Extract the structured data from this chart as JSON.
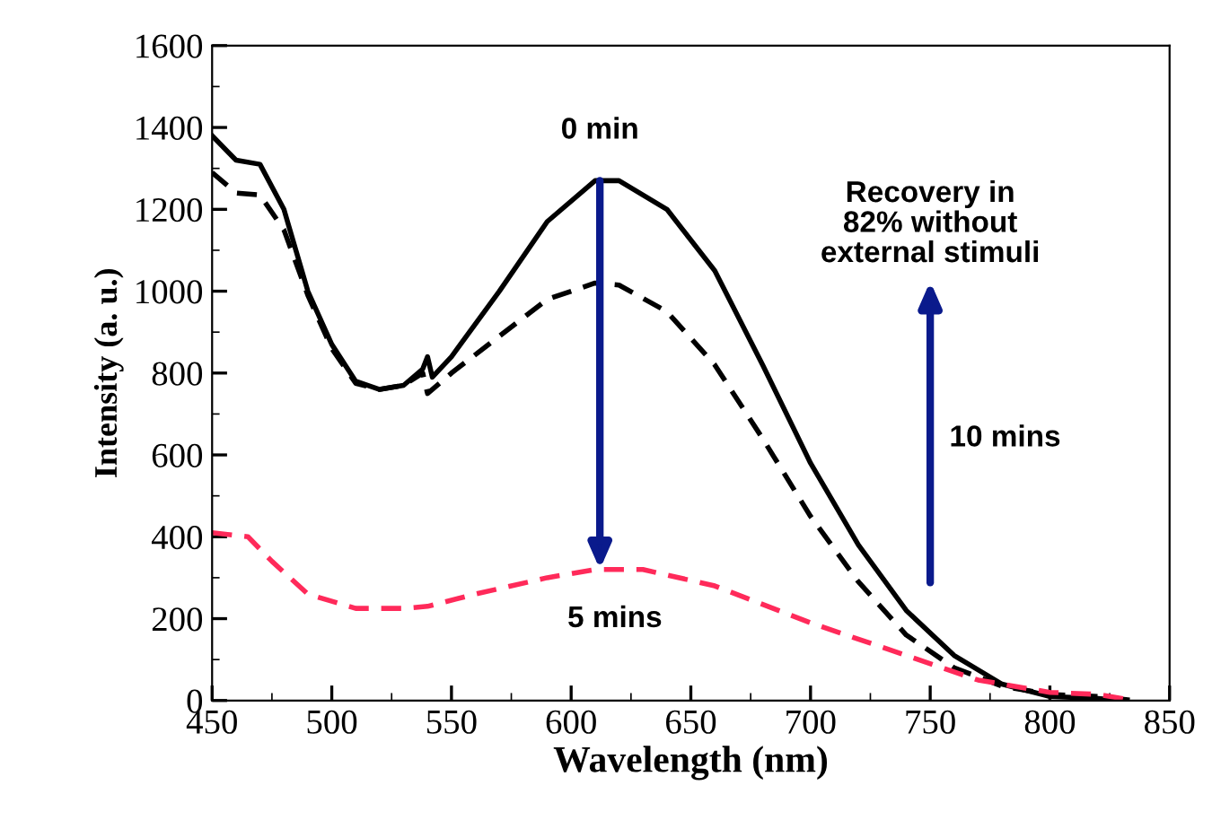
{
  "chart_data": {
    "type": "line",
    "xlabel": "Wavelength (nm)",
    "ylabel": "Intensity (a. u.)",
    "xlim": [
      450,
      850
    ],
    "ylim": [
      0,
      1600
    ],
    "xticks": [
      450,
      500,
      550,
      600,
      650,
      700,
      750,
      800,
      850
    ],
    "yticks": [
      0,
      200,
      400,
      600,
      800,
      1000,
      1200,
      1400,
      1600
    ],
    "grid": false,
    "legend": false,
    "series": [
      {
        "color": "#000000",
        "line_style": "solid",
        "x": [
          450,
          460,
          470,
          480,
          490,
          500,
          510,
          520,
          530,
          538,
          540,
          542,
          550,
          570,
          590,
          610,
          620,
          640,
          660,
          680,
          700,
          720,
          740,
          760,
          780,
          800,
          820,
          830
        ],
        "values": [
          1380,
          1320,
          1310,
          1200,
          1000,
          870,
          780,
          760,
          770,
          810,
          840,
          790,
          840,
          1000,
          1170,
          1270,
          1270,
          1200,
          1050,
          820,
          580,
          380,
          220,
          110,
          40,
          10,
          5,
          0
        ]
      },
      {
        "color": "#000000",
        "line_style": "dashed",
        "x": [
          450,
          460,
          470,
          480,
          490,
          500,
          510,
          520,
          530,
          538,
          540,
          550,
          570,
          590,
          610,
          620,
          640,
          660,
          680,
          700,
          720,
          740,
          760,
          780,
          800,
          820,
          835
        ],
        "values": [
          1290,
          1240,
          1235,
          1150,
          990,
          860,
          775,
          760,
          770,
          800,
          750,
          800,
          890,
          980,
          1020,
          1015,
          950,
          820,
          640,
          450,
          290,
          160,
          80,
          35,
          15,
          10,
          0
        ]
      },
      {
        "color": "#ff2a5a",
        "line_style": "dashed",
        "x": [
          450,
          465,
          475,
          490,
          510,
          530,
          540,
          560,
          590,
          610,
          630,
          660,
          700,
          740,
          770,
          800,
          820,
          835
        ],
        "values": [
          410,
          400,
          340,
          260,
          225,
          225,
          230,
          260,
          300,
          320,
          320,
          280,
          190,
          110,
          50,
          20,
          15,
          0
        ]
      }
    ],
    "annotations": [
      {
        "text": "0 min",
        "x": 612,
        "y": 1270
      },
      {
        "text": "5 mins",
        "x": 612,
        "y": 320
      },
      "10 mins",
      "Recovery in\n82% without\nexternal stimuli"
    ]
  }
}
